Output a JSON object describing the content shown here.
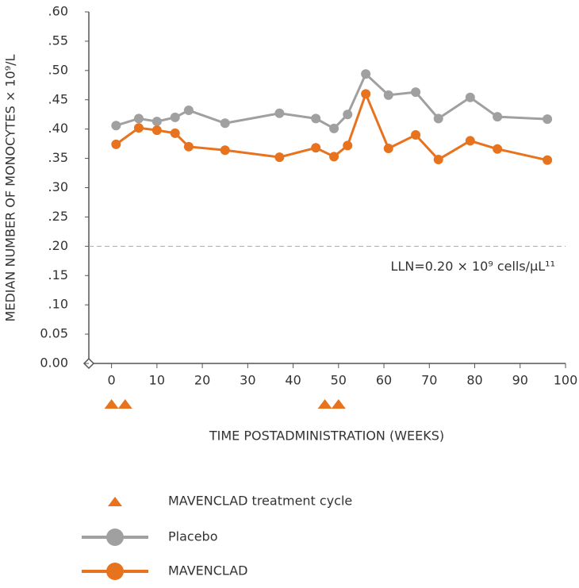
{
  "chart_data": {
    "type": "line",
    "y_label": "MEDIAN NUMBER OF MONOCYTES × 10⁹/L",
    "x_label": "TIME POSTADMINISTRATION (WEEKS)",
    "xlim": [
      -5,
      100
    ],
    "xticks": [
      0,
      10,
      20,
      30,
      40,
      50,
      60,
      70,
      80,
      90,
      100
    ],
    "ylim": [
      0,
      0.6
    ],
    "yticks": [
      {
        "value": 0,
        "label": "0.00"
      },
      {
        "value": 0.05,
        "label": "0.05"
      },
      {
        "value": 0.1,
        "label": ".10"
      },
      {
        "value": 0.15,
        "label": ".15"
      },
      {
        "value": 0.2,
        "label": ".20"
      },
      {
        "value": 0.25,
        "label": ".25"
      },
      {
        "value": 0.3,
        "label": ".30"
      },
      {
        "value": 0.35,
        "label": ".35"
      },
      {
        "value": 0.4,
        "label": ".40"
      },
      {
        "value": 0.45,
        "label": ".45"
      },
      {
        "value": 0.5,
        "label": ".50"
      },
      {
        "value": 0.55,
        "label": ".55"
      },
      {
        "value": 0.6,
        "label": ".60"
      }
    ],
    "reference_line": {
      "value": 0.2,
      "label": "LLN=0.20 × 10⁹ cells/μL¹¹"
    },
    "treatment_cycle": {
      "name": "MAVENCLAD treatment cycle",
      "color": "#e8731e",
      "x": [
        0,
        3,
        47,
        50
      ]
    },
    "x": [
      1,
      6,
      10,
      14,
      17,
      25,
      37,
      45,
      49,
      52,
      56,
      61,
      67,
      72,
      79,
      85,
      96
    ],
    "series": [
      {
        "name": "Placebo",
        "color": "#a0a0a0",
        "values": [
          0.406,
          0.418,
          0.413,
          0.42,
          0.432,
          0.41,
          0.427,
          0.418,
          0.401,
          0.425,
          0.494,
          0.458,
          0.463,
          0.418,
          0.454,
          0.421,
          0.417
        ]
      },
      {
        "name": "MAVENCLAD",
        "color": "#e8731e",
        "values": [
          0.374,
          0.402,
          0.398,
          0.393,
          0.37,
          0.364,
          0.352,
          0.368,
          0.353,
          0.372,
          0.46,
          0.367,
          0.39,
          0.348,
          0.38,
          0.366,
          0.347
        ]
      }
    ]
  }
}
